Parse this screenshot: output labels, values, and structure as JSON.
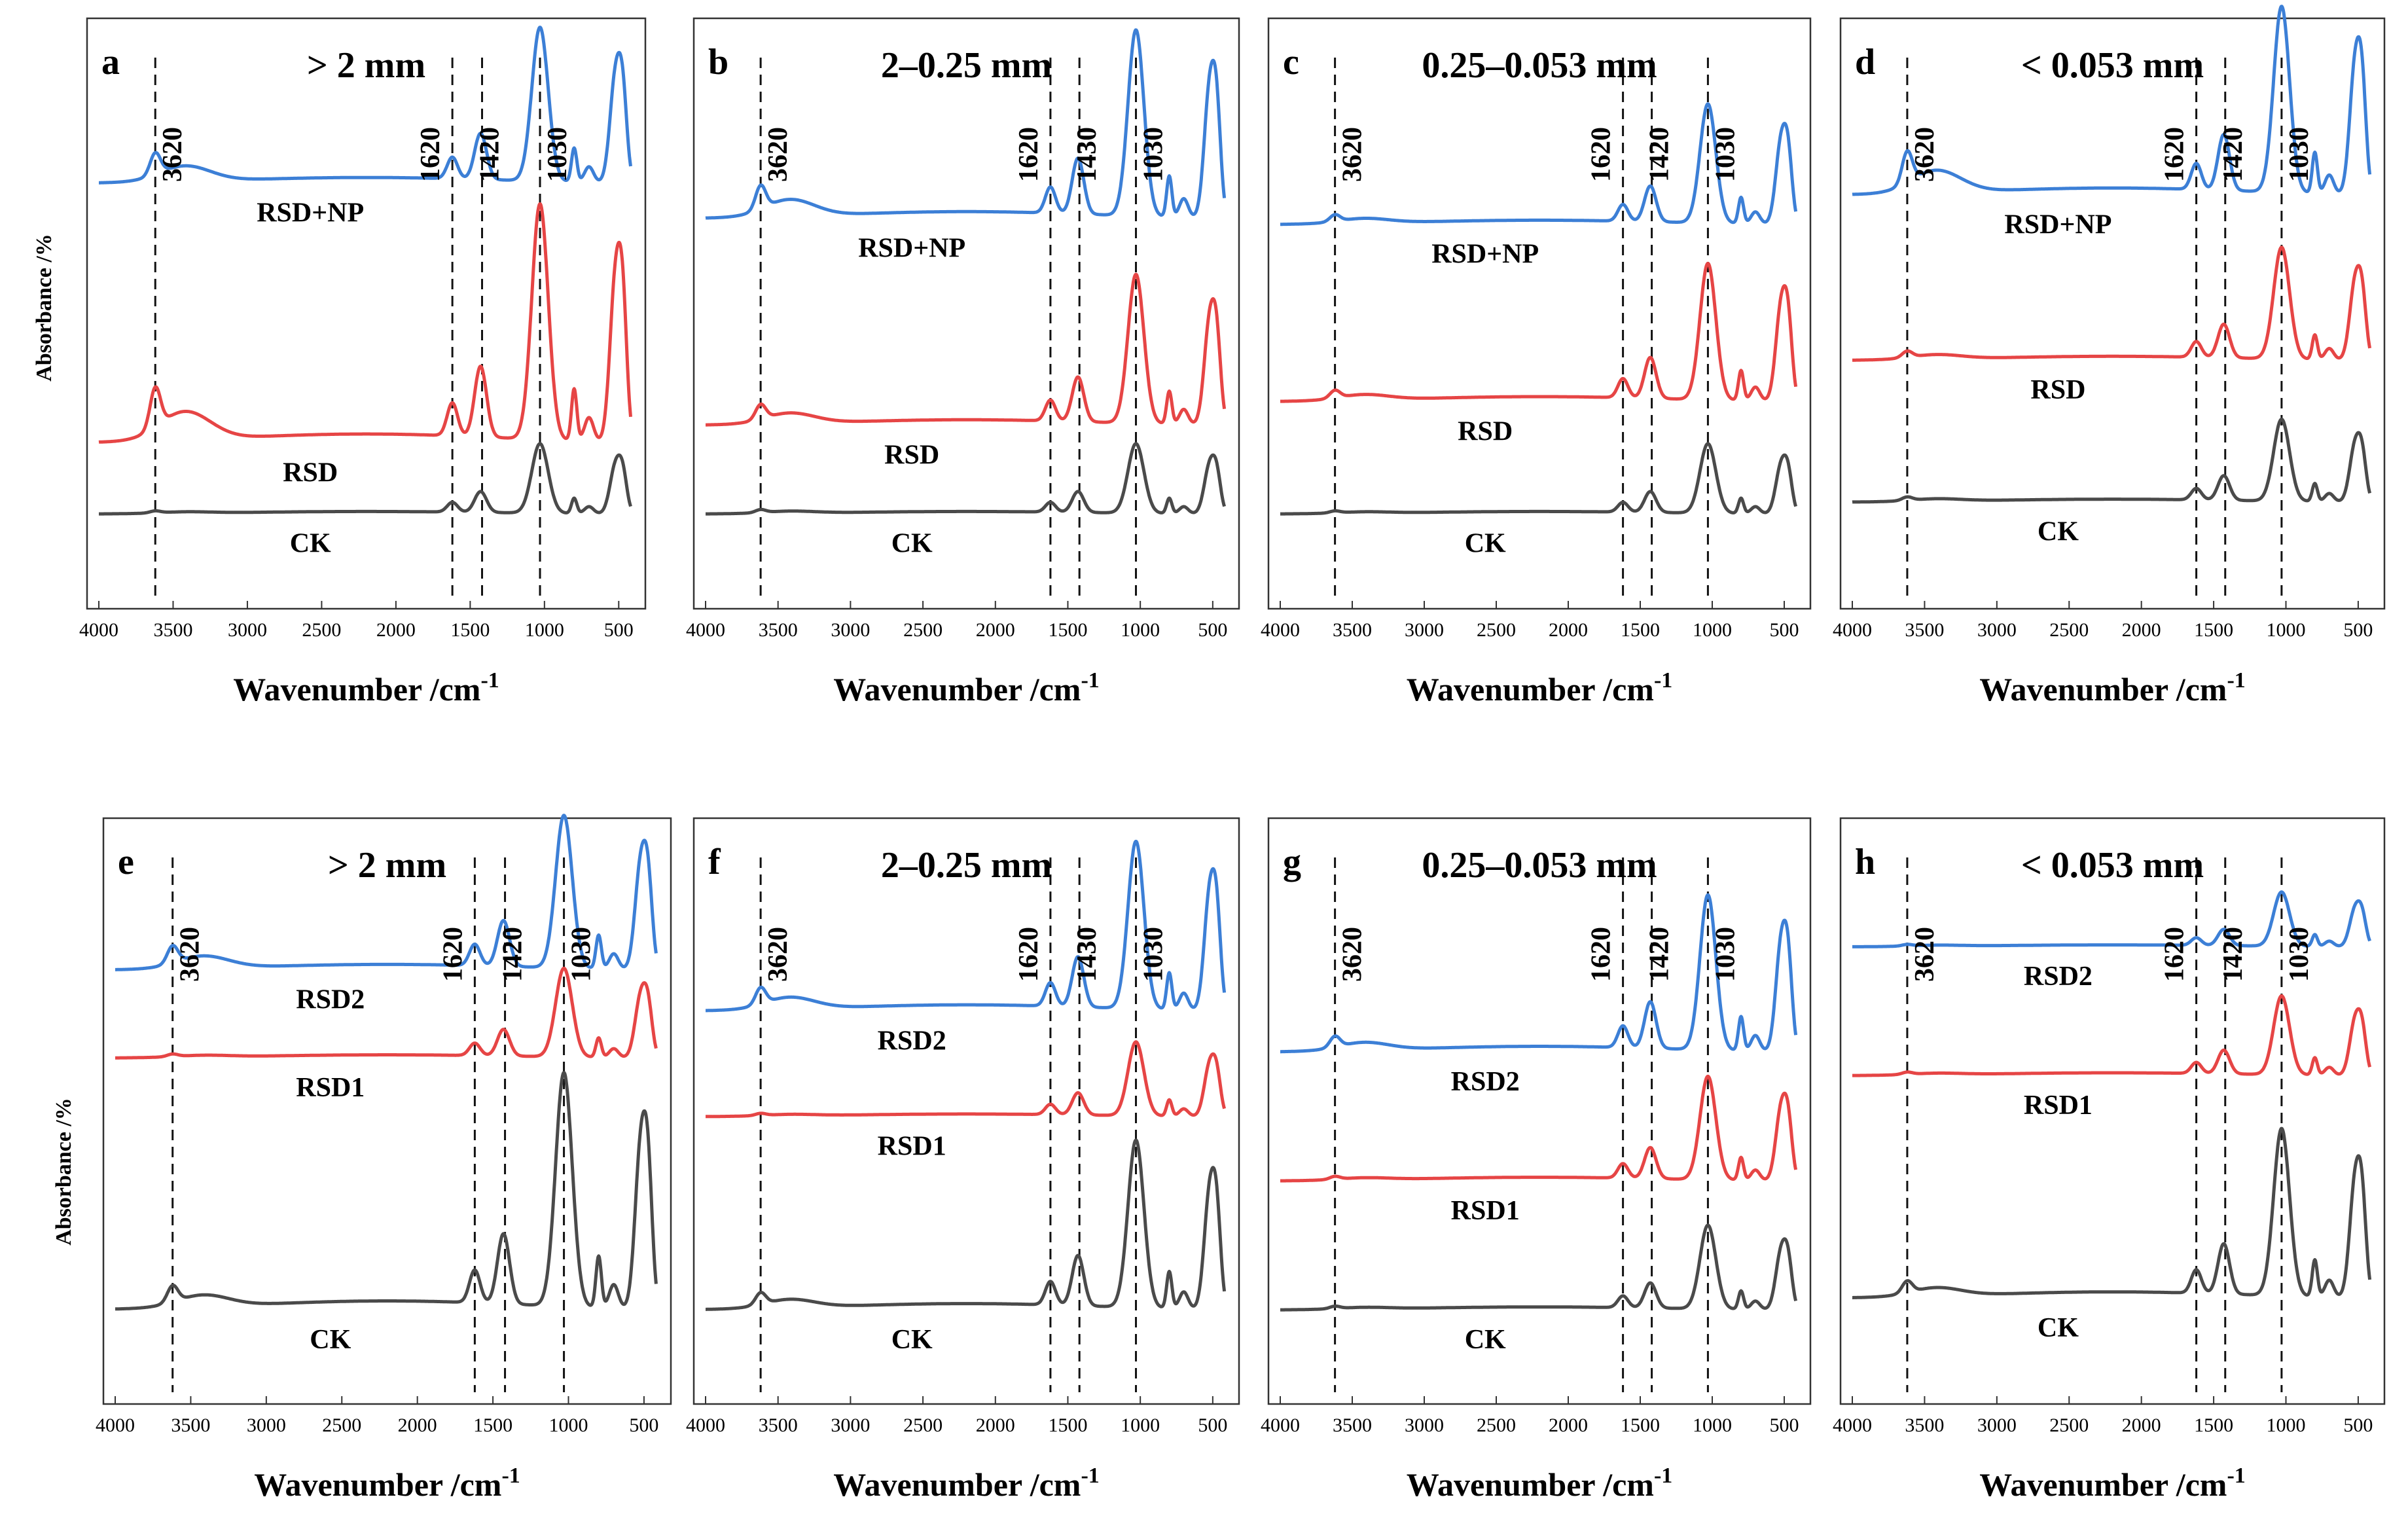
{
  "figure": {
    "y_axis_title": "Absorbance /%",
    "x_axis_title_base": "Wavenumber /cm",
    "x_axis_title_sup": "-1"
  },
  "colors": {
    "blue": "#3c7fd6",
    "red": "#e64545",
    "gray": "#4a4a4a",
    "frame": "#333333"
  },
  "chart_data": [
    {
      "type": "line",
      "panel": "a",
      "title": "> 2 mm",
      "xlim": [
        4000,
        400
      ],
      "x_reversed": true,
      "xticks": [
        4000,
        3500,
        3000,
        2500,
        2000,
        1500,
        1000,
        500
      ],
      "xlabel": "Wavenumber /cm-1",
      "ylabel": "Absorbance /%",
      "peaks": [
        "3620",
        "1620",
        "1420",
        "1030"
      ],
      "series": [
        {
          "name": "RSD+NP",
          "color": "blue",
          "baseline": 0.72,
          "amp": 0.62,
          "oh": 0.1
        },
        {
          "name": "RSD",
          "color": "red",
          "baseline": 0.28,
          "amp": 0.95,
          "oh": 0.12
        },
        {
          "name": "CK",
          "color": "gray",
          "baseline": 0.16,
          "amp": 0.28,
          "oh": 0.02
        }
      ]
    },
    {
      "type": "line",
      "panel": "b",
      "title": "2–0.25 mm",
      "xlim": [
        4000,
        400
      ],
      "x_reversed": true,
      "xticks": [
        4000,
        3500,
        3000,
        2500,
        2000,
        1500,
        1000,
        500
      ],
      "xlabel": "Wavenumber /cm-1",
      "ylabel": "Absorbance /%",
      "peaks": [
        "3620",
        "1620",
        "1430",
        "1030"
      ],
      "series": [
        {
          "name": "RSD+NP",
          "color": "blue",
          "baseline": 0.66,
          "amp": 0.75,
          "oh": 0.09
        },
        {
          "name": "RSD",
          "color": "red",
          "baseline": 0.31,
          "amp": 0.6,
          "oh": 0.07
        },
        {
          "name": "CK",
          "color": "gray",
          "baseline": 0.16,
          "amp": 0.28,
          "oh": 0.03
        }
      ]
    },
    {
      "type": "line",
      "panel": "c",
      "title": "0.25–0.053 mm",
      "xlim": [
        4000,
        400
      ],
      "x_reversed": true,
      "xticks": [
        4000,
        3500,
        3000,
        2500,
        2000,
        1500,
        1000,
        500
      ],
      "xlabel": "Wavenumber /cm-1",
      "ylabel": "Absorbance /%",
      "peaks": [
        "3620",
        "1620",
        "1420",
        "1030"
      ],
      "series": [
        {
          "name": "RSD+NP",
          "color": "blue",
          "baseline": 0.65,
          "amp": 0.48,
          "oh": 0.04
        },
        {
          "name": "RSD",
          "color": "red",
          "baseline": 0.35,
          "amp": 0.55,
          "oh": 0.04
        },
        {
          "name": "CK",
          "color": "gray",
          "baseline": 0.16,
          "amp": 0.28,
          "oh": 0.02
        }
      ]
    },
    {
      "type": "line",
      "panel": "d",
      "title": "< 0.053 mm",
      "xlim": [
        4000,
        400
      ],
      "x_reversed": true,
      "xticks": [
        4000,
        3500,
        3000,
        2500,
        2000,
        1500,
        1000,
        500
      ],
      "xlabel": "Wavenumber /cm-1",
      "ylabel": "Absorbance /%",
      "peaks": [
        "3620",
        "1620",
        "1420",
        "1030"
      ],
      "series": [
        {
          "name": "RSD+NP",
          "color": "blue",
          "baseline": 0.7,
          "amp": 0.75,
          "oh": 0.12
        },
        {
          "name": "RSD",
          "color": "red",
          "baseline": 0.42,
          "amp": 0.45,
          "oh": 0.04
        },
        {
          "name": "CK",
          "color": "gray",
          "baseline": 0.18,
          "amp": 0.33,
          "oh": 0.03
        }
      ]
    },
    {
      "type": "line",
      "panel": "e",
      "title": "> 2 mm",
      "xlim": [
        4000,
        400
      ],
      "x_reversed": true,
      "xticks": [
        4000,
        3500,
        3000,
        2500,
        2000,
        1500,
        1000,
        500
      ],
      "xlabel": "Wavenumber /cm-1",
      "ylabel": "Absorbance /%",
      "peaks": [
        "3620",
        "1620",
        "1420",
        "1030"
      ],
      "series": [
        {
          "name": "RSD2",
          "color": "blue",
          "baseline": 0.74,
          "amp": 0.62,
          "oh": 0.08
        },
        {
          "name": "RSD1",
          "color": "red",
          "baseline": 0.59,
          "amp": 0.36,
          "oh": 0.02
        },
        {
          "name": "CK",
          "color": "gray",
          "baseline": 0.16,
          "amp": 0.95,
          "oh": 0.05
        }
      ]
    },
    {
      "type": "line",
      "panel": "f",
      "title": "2–0.25 mm",
      "xlim": [
        4000,
        400
      ],
      "x_reversed": true,
      "xticks": [
        4000,
        3500,
        3000,
        2500,
        2000,
        1500,
        1000,
        500
      ],
      "xlabel": "Wavenumber /cm-1",
      "ylabel": "Absorbance /%",
      "peaks": [
        "3620",
        "1620",
        "1430",
        "1030"
      ],
      "series": [
        {
          "name": "RSD2",
          "color": "blue",
          "baseline": 0.67,
          "amp": 0.68,
          "oh": 0.07
        },
        {
          "name": "RSD1",
          "color": "red",
          "baseline": 0.49,
          "amp": 0.3,
          "oh": 0.02
        },
        {
          "name": "CK",
          "color": "gray",
          "baseline": 0.16,
          "amp": 0.68,
          "oh": 0.05
        }
      ]
    },
    {
      "type": "line",
      "panel": "g",
      "title": "0.25–0.053 mm",
      "xlim": [
        4000,
        400
      ],
      "x_reversed": true,
      "xticks": [
        4000,
        3500,
        3000,
        2500,
        2000,
        1500,
        1000,
        500
      ],
      "xlabel": "Wavenumber /cm-1",
      "ylabel": "Absorbance /%",
      "peaks": [
        "3620",
        "1620",
        "1420",
        "1030"
      ],
      "series": [
        {
          "name": "RSD2",
          "color": "blue",
          "baseline": 0.6,
          "amp": 0.63,
          "oh": 0.05
        },
        {
          "name": "RSD1",
          "color": "red",
          "baseline": 0.38,
          "amp": 0.42,
          "oh": 0.02
        },
        {
          "name": "CK",
          "color": "gray",
          "baseline": 0.16,
          "amp": 0.34,
          "oh": 0.02
        }
      ]
    },
    {
      "type": "line",
      "panel": "h",
      "title": "< 0.053 mm",
      "xlim": [
        4000,
        400
      ],
      "x_reversed": true,
      "xticks": [
        4000,
        3500,
        3000,
        2500,
        2000,
        1500,
        1000,
        500
      ],
      "xlabel": "Wavenumber /cm-1",
      "ylabel": "Absorbance /%",
      "peaks": [
        "3620",
        "1620",
        "1420",
        "1030"
      ],
      "series": [
        {
          "name": "RSD2",
          "color": "blue",
          "baseline": 0.78,
          "amp": 0.22,
          "oh": 0.02
        },
        {
          "name": "RSD1",
          "color": "red",
          "baseline": 0.56,
          "amp": 0.32,
          "oh": 0.02
        },
        {
          "name": "CK",
          "color": "gray",
          "baseline": 0.18,
          "amp": 0.68,
          "oh": 0.05
        }
      ]
    }
  ]
}
